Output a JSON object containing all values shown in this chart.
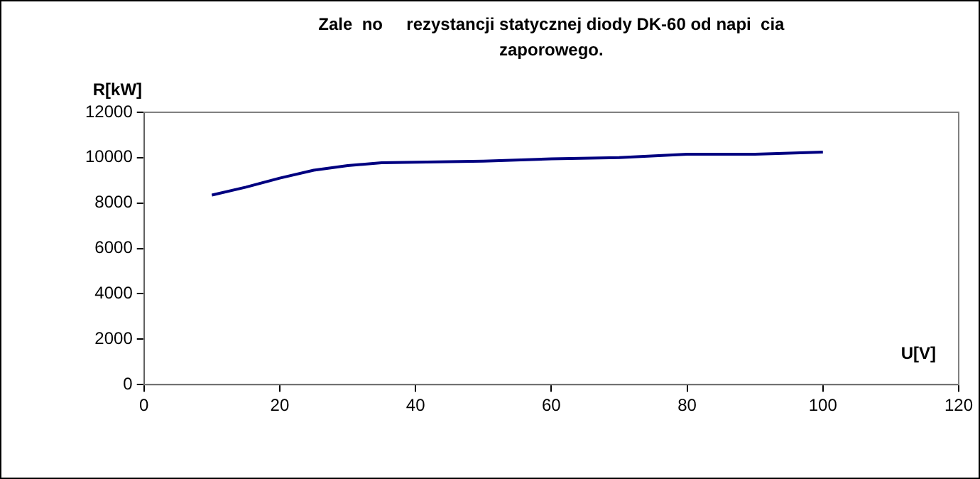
{
  "chart_data": {
    "type": "line",
    "title": [
      "Zale  no     rezystancji statycznej diody DK-60 od napi  cia",
      "zaporowego."
    ],
    "xlabel": "U[V]",
    "ylabel": "R[kW]",
    "x": [
      10,
      15,
      20,
      25,
      30,
      35,
      40,
      50,
      60,
      70,
      80,
      90,
      100
    ],
    "series": [
      {
        "color": "#000080",
        "values": [
          8350,
          8700,
          9100,
          9450,
          9650,
          9780,
          9800,
          9850,
          9950,
          10000,
          10150,
          10150,
          10250
        ]
      }
    ],
    "xlim": [
      0,
      120
    ],
    "xticks": [
      0,
      20,
      40,
      60,
      80,
      100,
      120
    ],
    "ylim": [
      0,
      12000
    ],
    "yticks": [
      0,
      2000,
      4000,
      6000,
      8000,
      10000,
      12000
    ],
    "grid": false,
    "legend": false,
    "marker": "none",
    "line_style": "solid"
  }
}
